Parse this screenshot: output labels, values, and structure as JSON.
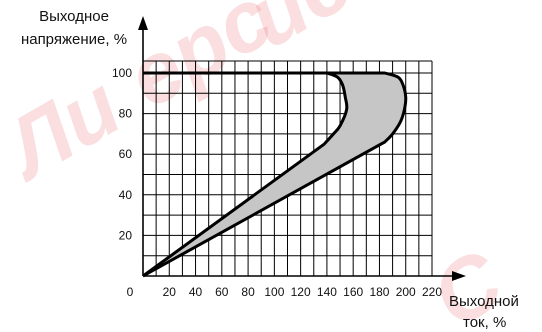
{
  "watermark": [
    "Ли",
    "ерс",
    "иc",
    "С"
  ],
  "chart_data": {
    "type": "area",
    "title": "",
    "ylabel_lines": [
      "Выходное",
      "напряжение, %"
    ],
    "xlabel_lines": [
      "Выходной",
      "ток, %"
    ],
    "xlim": [
      0,
      220
    ],
    "ylim": [
      0,
      100
    ],
    "xticks": [
      0,
      20,
      40,
      60,
      80,
      100,
      120,
      140,
      160,
      180,
      200,
      220
    ],
    "yticks": [
      20,
      40,
      60,
      80,
      100
    ],
    "grid": true,
    "series": [
      {
        "role": "upper-boundary",
        "x": [
          0,
          140,
          148,
          152,
          154,
          155,
          150,
          145,
          138,
          0
        ],
        "y": [
          100,
          100,
          98,
          94,
          88,
          82,
          74,
          70,
          65,
          0
        ]
      },
      {
        "role": "lower-boundary",
        "x": [
          0,
          184,
          194,
          198,
          200,
          199,
          196,
          190,
          184,
          0
        ],
        "y": [
          100,
          100,
          98,
          94,
          88,
          82,
          76,
          70,
          66,
          0
        ]
      }
    ],
    "fill_color": "#c6c6c6",
    "line_color": "#000000",
    "grid_color": "#000000"
  }
}
